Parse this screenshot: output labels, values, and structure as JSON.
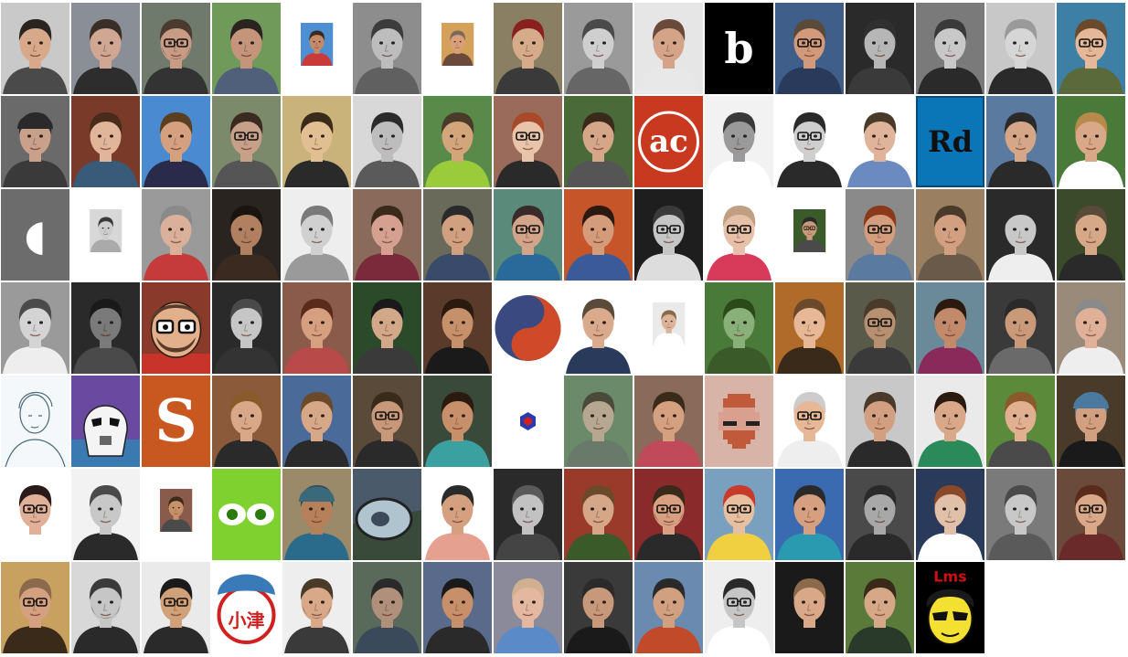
{
  "gallery": {
    "rows": [
      [
        {
          "kind": "face",
          "bg": "#c9c9c9",
          "skin": "#d7a98a",
          "hair": "#2a2420",
          "shirt": "#4a4a4a"
        },
        {
          "kind": "face",
          "bg": "#8a8f97",
          "skin": "#cfa793",
          "hair": "#3a2f28",
          "shirt": "#2d2d2d"
        },
        {
          "kind": "face",
          "bg": "#6f7a6c",
          "skin": "#c79b84",
          "hair": "#4a3a30",
          "shirt": "#333333",
          "glasses": true,
          "beard": true
        },
        {
          "kind": "face",
          "bg": "#6f9a5a",
          "skin": "#c4957a",
          "hair": "#2a2420",
          "shirt": "#50607a"
        },
        {
          "kind": "face",
          "bg": "#ffffff",
          "inner": "#4d8fd1",
          "skin": "#c38a6a",
          "hair": "#3a2a22",
          "shirt": "#c93a3a",
          "small": true
        },
        {
          "kind": "face",
          "bg": "#8d8d8d",
          "skin": "#bdbdbd",
          "hair": "#3c3c3c",
          "shirt": "#606060",
          "gray": true
        },
        {
          "kind": "face",
          "bg": "#ffffff",
          "inner": "#d5a15a",
          "skin": "#d9a07a",
          "hair": "#7a6a5a",
          "shirt": "#6a4a3a",
          "small": true
        },
        {
          "kind": "face",
          "bg": "#8a7f62",
          "skin": "#d6ab8a",
          "hair": "#8a2020",
          "shirt": "#3a3a3a"
        },
        {
          "kind": "face",
          "bg": "#9a9a9a",
          "skin": "#cfcfcf",
          "hair": "#4a4a4a",
          "shirt": "#666666",
          "gray": true
        },
        {
          "kind": "face",
          "bg": "#e6e6e6",
          "skin": "#d4a488",
          "hair": "#6a4a3a",
          "shirt": "#e8e8e8"
        },
        {
          "kind": "logo",
          "bg": "#000000",
          "fg": "#ffffff",
          "text": "b",
          "size": 46
        },
        {
          "kind": "face",
          "bg": "#3f5f8a",
          "skin": "#d29a7a",
          "hair": "#5a4a3a",
          "shirt": "#2a3a5a",
          "glasses": true
        },
        {
          "kind": "face",
          "bg": "#2a2a2a",
          "skin": "#b6b6b6",
          "hair": "#303030",
          "shirt": "#3a3a3a",
          "gray": true
        },
        {
          "kind": "face",
          "bg": "#7a7a7a",
          "skin": "#c8c8c8",
          "hair": "#3a3a3a",
          "shirt": "#2a2a2a",
          "gray": true
        },
        {
          "kind": "face",
          "bg": "#c8c8c8",
          "skin": "#d6d6d6",
          "hair": "#9a9a9a",
          "shirt": "#2a2a2a",
          "gray": true
        },
        {
          "kind": "face",
          "bg": "#3e7fa6",
          "skin": "#e6b89a",
          "hair": "#6a4a2a",
          "shirt": "#5a6a3a",
          "glasses": true
        }
      ],
      [
        {
          "kind": "face",
          "bg": "#6a6a6a",
          "skin": "#c9a08a",
          "hair": "#2a2a2a",
          "shirt": "#3a3a3a",
          "hat": "#2a2a2a"
        },
        {
          "kind": "face",
          "bg": "#7a3a2a",
          "skin": "#e0b59a",
          "hair": "#4a2a1a",
          "shirt": "#3a5a7a"
        },
        {
          "kind": "face",
          "bg": "#4a8ad0",
          "skin": "#d4a080",
          "hair": "#5a4020",
          "shirt": "#2a2a4a"
        },
        {
          "kind": "face",
          "bg": "#7a8a6a",
          "skin": "#c7a089",
          "hair": "#3a2a20",
          "shirt": "#555555",
          "glasses": true
        },
        {
          "kind": "face",
          "bg": "#c9b37a",
          "skin": "#e2bf92",
          "hair": "#3a2a1a",
          "shirt": "#2a2a2a"
        },
        {
          "kind": "face",
          "bg": "#d8d8d8",
          "skin": "#bdbdbd",
          "hair": "#2a2a2a",
          "shirt": "#5a5a5a",
          "gray": true
        },
        {
          "kind": "face",
          "bg": "#5a8a4a",
          "skin": "#d2a57a",
          "hair": "#4a3a2a",
          "shirt": "#9acb3a"
        },
        {
          "kind": "face",
          "bg": "#9a6a5a",
          "skin": "#e8c4aa",
          "hair": "#a84a2a",
          "shirt": "#2a2a2a",
          "glasses": true
        },
        {
          "kind": "face",
          "bg": "#4a6a3a",
          "skin": "#d6a688",
          "hair": "#3a2a1a",
          "shirt": "#555555"
        },
        {
          "kind": "logo",
          "bg": "#c8391f",
          "fg": "#ffffff",
          "text": "ac",
          "size": 34,
          "ring": true
        },
        {
          "kind": "face",
          "bg": "#f2f2f2",
          "skin": "#9a9a9a",
          "hair": "#3a3a3a",
          "shirt": "#ffffff",
          "gray": true
        },
        {
          "kind": "face",
          "bg": "#ffffff",
          "skin": "#cfcfcf",
          "hair": "#2a2a2a",
          "shirt": "#2a2a2a",
          "gray": true,
          "glasses": true
        },
        {
          "kind": "face",
          "bg": "#ffffff",
          "skin": "#e0b49a",
          "hair": "#4a3a2a",
          "shirt": "#6a8ac0"
        },
        {
          "kind": "logo",
          "bg": "#0a76b8",
          "fg": "#111111",
          "text": "Rd",
          "size": 32,
          "frame": true
        },
        {
          "kind": "face",
          "bg": "#5a7aa0",
          "skin": "#d6a688",
          "hair": "#2a2a2a",
          "shirt": "#2a2a2a"
        },
        {
          "kind": "face",
          "bg": "#4a7a3a",
          "skin": "#d8a888",
          "hair": "#b58a4a",
          "shirt": "#ffffff"
        }
      ],
      [
        {
          "kind": "logo",
          "bg": "#6c6c6c",
          "fg": "#ffffff",
          "text": "◖",
          "size": 46
        },
        {
          "kind": "face",
          "bg": "#ffffff",
          "inner": "#d8d8d8",
          "skin": "#cdcdcd",
          "hair": "#3a3a3a",
          "shirt": "#aaaaaa",
          "small": true,
          "gray": true
        },
        {
          "kind": "face",
          "bg": "#9a9a9a",
          "skin": "#dbb09a",
          "hair": "#8a8a8a",
          "shirt": "#c53a3a"
        },
        {
          "kind": "face",
          "bg": "#2a2420",
          "skin": "#b08060",
          "hair": "#1a1410",
          "shirt": "#3a2a20"
        },
        {
          "kind": "face",
          "bg": "#eeeeee",
          "skin": "#d0d0d0",
          "hair": "#7a7a7a",
          "shirt": "#9a9a9a",
          "gray": true
        },
        {
          "kind": "face",
          "bg": "#8a6a5a",
          "skin": "#d6a090",
          "hair": "#3a2a1a",
          "shirt": "#7a2a3a"
        },
        {
          "kind": "face",
          "bg": "#6a6a5a",
          "skin": "#d0a080",
          "hair": "#2a2a2a",
          "shirt": "#3a4a6a"
        },
        {
          "kind": "face",
          "bg": "#5a8a7a",
          "skin": "#d2a48a",
          "hair": "#3a2a2a",
          "shirt": "#2a6a9a",
          "glasses": true
        },
        {
          "kind": "face",
          "bg": "#c7552a",
          "skin": "#d49c7a",
          "hair": "#2a1a10",
          "shirt": "#3a5a9a"
        },
        {
          "kind": "face",
          "bg": "#1e1e1e",
          "skin": "#c6c6c6",
          "hair": "#3a3a3a",
          "shirt": "#dddddd",
          "gray": true,
          "glasses": true
        },
        {
          "kind": "face",
          "bg": "#ffffff",
          "skin": "#e6c0a8",
          "hair": "#c0a080",
          "shirt": "#d83a5a",
          "glasses": true
        },
        {
          "kind": "face",
          "bg": "#ffffff",
          "inner": "#3a5a2a",
          "skin": "#c99a7a",
          "hair": "#2a2a2a",
          "shirt": "#4a4a4a",
          "small": true,
          "glasses": true
        },
        {
          "kind": "face",
          "bg": "#8a8a8a",
          "skin": "#d49e7e",
          "hair": "#8a3a1a",
          "shirt": "#5a7aa0",
          "glasses": true
        },
        {
          "kind": "face",
          "bg": "#9a8060",
          "skin": "#d2a080",
          "hair": "#4a3a2a",
          "shirt": "#6a5a4a"
        },
        {
          "kind": "face",
          "bg": "#2a2a2a",
          "skin": "#c8c8c8",
          "hair": "#2a2a2a",
          "shirt": "#eeeeee",
          "gray": true
        },
        {
          "kind": "face",
          "bg": "#3a4a2a",
          "skin": "#d6a888",
          "hair": "#5a4a3a",
          "shirt": "#2a2a2a"
        }
      ],
      [
        {
          "kind": "face",
          "bg": "#9a9a9a",
          "skin": "#d4d4d4",
          "hair": "#4a4a4a",
          "shirt": "#eeeeee",
          "gray": true
        },
        {
          "kind": "face",
          "bg": "#2a2a2a",
          "skin": "#7a7a7a",
          "hair": "#1a1a1a",
          "shirt": "#4a4a4a",
          "gray": true
        },
        {
          "kind": "cartoon",
          "bg": "#8a3a2a",
          "skin": "#e2b08a",
          "hair": "#5a3a2a",
          "shirt": "#c8342a",
          "glasses": true
        },
        {
          "kind": "face",
          "bg": "#2a2a2a",
          "skin": "#c6c6c6",
          "hair": "#4a4a4a",
          "shirt": "#333333",
          "gray": true
        },
        {
          "kind": "face",
          "bg": "#8a5a4a",
          "skin": "#d6a080",
          "hair": "#5a2a1a",
          "shirt": "#b84a4a"
        },
        {
          "kind": "face",
          "bg": "#2a4a2a",
          "skin": "#d2a888",
          "hair": "#1a1a1a",
          "shirt": "#3a3a3a"
        },
        {
          "kind": "face",
          "bg": "#5a3a2a",
          "skin": "#c6906a",
          "hair": "#2a1a10",
          "shirt": "#1a1a1a"
        },
        {
          "kind": "logo",
          "bg": "#ffffff",
          "fg": "#d04a2a",
          "text": "◐",
          "size": 70,
          "swirl": true
        },
        {
          "kind": "face",
          "bg": "#ffffff",
          "skin": "#d9ab8c",
          "hair": "#5a4a3a",
          "shirt": "#2a3a5a"
        },
        {
          "kind": "face",
          "bg": "#ffffff",
          "inner": "#eaeaea",
          "skin": "#dcb49a",
          "hair": "#8a6a4a",
          "shirt": "#ffffff",
          "small": true
        },
        {
          "kind": "face",
          "bg": "#4a7a3a",
          "skin": "#8ab07a",
          "hair": "#2a4a1a",
          "shirt": "#3a5a2a"
        },
        {
          "kind": "face",
          "bg": "#b06a2a",
          "skin": "#e6b896",
          "hair": "#6a4a2a",
          "shirt": "#3a2a1a"
        },
        {
          "kind": "face",
          "bg": "#5a5a4a",
          "skin": "#b69070",
          "hair": "#4a3a2a",
          "shirt": "#3a3a3a",
          "glasses": true
        },
        {
          "kind": "face",
          "bg": "#6a8a9a",
          "skin": "#c28a6a",
          "hair": "#2a1a10",
          "shirt": "#8a2a5a"
        },
        {
          "kind": "face",
          "bg": "#3a3a3a",
          "skin": "#c89a7a",
          "hair": "#2a2a2a",
          "shirt": "#6a6a6a"
        },
        {
          "kind": "face",
          "bg": "#9a8a7a",
          "skin": "#e0b098",
          "hair": "#8a8a8a",
          "shirt": "#eeeeee"
        }
      ],
      [
        {
          "kind": "sketch",
          "bg": "#f4f8fa",
          "skin": "#ffffff",
          "hair": "#5a7a8a",
          "shirt": "#ffffff"
        },
        {
          "kind": "trooper",
          "bg": "#6a4aa0",
          "skin": "#f4f4f4",
          "hair": "#f4f4f4",
          "shirt": "#d0d0d0"
        },
        {
          "kind": "logo",
          "bg": "#c8581f",
          "fg": "#ffffff",
          "text": "S",
          "size": 64
        },
        {
          "kind": "face",
          "bg": "#8a5a3a",
          "skin": "#d8a888",
          "hair": "#8a5a2a",
          "shirt": "#2a2a2a"
        },
        {
          "kind": "face",
          "bg": "#4a6a9a",
          "skin": "#d6a888",
          "hair": "#6a4a2a",
          "shirt": "#2a2a2a"
        },
        {
          "kind": "face",
          "bg": "#5a4a3a",
          "skin": "#c8987a",
          "hair": "#3a2a1a",
          "shirt": "#2a2a2a",
          "glasses": true
        },
        {
          "kind": "face",
          "bg": "#3a4a3a",
          "skin": "#c8906a",
          "hair": "#2a1a10",
          "shirt": "#3aa0a0"
        },
        {
          "kind": "logo",
          "bg": "#ffffff",
          "fg": "#d02020",
          "text": "⬢",
          "size": 22,
          "hex": true
        },
        {
          "kind": "face",
          "bg": "#6a8a6a",
          "skin": "#b6a890",
          "hair": "#4a4a3a",
          "shirt": "#6a7a6a"
        },
        {
          "kind": "face",
          "bg": "#8a6a5a",
          "skin": "#d4a080",
          "hair": "#3a2a1a",
          "shirt": "#c04a5a"
        },
        {
          "kind": "pixel",
          "bg": "#d8b4a8",
          "skin": "#d9a090",
          "hair": "#c05a3a",
          "shirt": "#7a4a3a",
          "glasses": true
        },
        {
          "kind": "face",
          "bg": "#ffffff",
          "skin": "#e6b898",
          "hair": "#cccccc",
          "shirt": "#eeeeee",
          "glasses": true
        },
        {
          "kind": "face",
          "bg": "#c8c8c8",
          "skin": "#d2a080",
          "hair": "#4a3a2a",
          "shirt": "#2a2a2a"
        },
        {
          "kind": "face",
          "bg": "#eaeaea",
          "skin": "#d8a888",
          "hair": "#2a1a10",
          "shirt": "#2a8a5a"
        },
        {
          "kind": "face",
          "bg": "#5a8a3a",
          "skin": "#e0b090",
          "hair": "#8a5a2a",
          "shirt": "#4a4a4a"
        },
        {
          "kind": "face",
          "bg": "#4a3a2a",
          "skin": "#d2a080",
          "hair": "#4a7aa0",
          "shirt": "#1a1a1a",
          "hat": "#4a7aa0"
        }
      ],
      [
        {
          "kind": "face",
          "bg": "#ffffff",
          "skin": "#e0b098",
          "hair": "#2a1a1a",
          "shirt": "#ffffff",
          "glasses": true
        },
        {
          "kind": "face",
          "bg": "#f2f2f2",
          "skin": "#c8c8c8",
          "hair": "#4a4a4a",
          "shirt": "#2a2a2a",
          "gray": true
        },
        {
          "kind": "face",
          "bg": "#ffffff",
          "inner": "#8a5a4a",
          "skin": "#c6906a",
          "hair": "#3a2a1a",
          "shirt": "#4a4a4a",
          "small": true
        },
        {
          "kind": "logo",
          "bg": "#7fd130",
          "fg": "#ffffff",
          "text": "◉ ◉",
          "size": 28,
          "eyes": true
        },
        {
          "kind": "face",
          "bg": "#9a8a6a",
          "skin": "#b6805a",
          "hair": "#2a4a5a",
          "shirt": "#2a6a8a",
          "hat": "#3a6a7a"
        },
        {
          "kind": "car",
          "bg": "#6a7a6a",
          "skin": "#b0c4d0",
          "hair": "#3a3a3a",
          "shirt": "#5a6a5a"
        },
        {
          "kind": "face",
          "bg": "#ffffff",
          "skin": "#d4a080",
          "hair": "#2a2a2a",
          "shirt": "#e6a090",
          "small": false
        },
        {
          "kind": "face",
          "bg": "#2a2a2a",
          "skin": "#c2c2c2",
          "hair": "#5a5a5a",
          "shirt": "#444444",
          "gray": true
        },
        {
          "kind": "face",
          "bg": "#9a3a2a",
          "skin": "#d6a688",
          "hair": "#6a4a2a",
          "shirt": "#3a5a2a"
        },
        {
          "kind": "face",
          "bg": "#8a2a2a",
          "skin": "#d8a080",
          "hair": "#3a2a1a",
          "shirt": "#2a2a2a",
          "glasses": true,
          "beard": true
        },
        {
          "kind": "face",
          "bg": "#7aa0c0",
          "skin": "#e6c0a0",
          "hair": "#c83a2a",
          "shirt": "#f0d040",
          "glasses": true
        },
        {
          "kind": "face",
          "bg": "#3a6ab0",
          "skin": "#d6a080",
          "hair": "#2a2a2a",
          "shirt": "#2a9ab0"
        },
        {
          "kind": "face",
          "bg": "#4a4a4a",
          "skin": "#a8a8a8",
          "hair": "#2a2a2a",
          "shirt": "#2a2a2a",
          "gray": true
        },
        {
          "kind": "face",
          "bg": "#2a3a5a",
          "skin": "#e0c0a8",
          "hair": "#8a4a2a",
          "shirt": "#ffffff",
          "small": false
        },
        {
          "kind": "face",
          "bg": "#7a7a7a",
          "skin": "#c8c8c8",
          "hair": "#4a4a4a",
          "shirt": "#5a5a5a",
          "gray": true
        },
        {
          "kind": "face",
          "bg": "#6a4a3a",
          "skin": "#d8a888",
          "hair": "#5a2a1a",
          "shirt": "#6a2a2a",
          "glasses": true
        }
      ],
      [
        {
          "kind": "face",
          "bg": "#c8a060",
          "skin": "#d4a080",
          "hair": "#8a6a4a",
          "shirt": "#3a2a1a",
          "glasses": true
        },
        {
          "kind": "face",
          "bg": "#d8d8d8",
          "skin": "#c6c6c6",
          "hair": "#3a3a3a",
          "shirt": "#2a2a2a",
          "gray": true,
          "beard": true
        },
        {
          "kind": "face",
          "bg": "#eaeaea",
          "skin": "#d0a078",
          "hair": "#1a1a1a",
          "shirt": "#2a2a2a",
          "glasses": true
        },
        {
          "kind": "stamp",
          "bg": "#ffffff",
          "skin": "#ffffff",
          "hair": "#3a7ab8",
          "shirt": "#d02020",
          "stamp_text": "小津"
        },
        {
          "kind": "face",
          "bg": "#eeeeee",
          "skin": "#d8a888",
          "hair": "#4a3a2a",
          "shirt": "#3a3a3a",
          "beard": true
        },
        {
          "kind": "face",
          "bg": "#5a6a5a",
          "skin": "#b0907a",
          "hair": "#2a2a2a",
          "shirt": "#3a4a5a"
        },
        {
          "kind": "face",
          "bg": "#5a6a8a",
          "skin": "#c8906a",
          "hair": "#1a1a1a",
          "shirt": "#2a2a2a"
        },
        {
          "kind": "face",
          "bg": "#8a8a9a",
          "skin": "#e4b8a0",
          "hair": "#d0b090",
          "shirt": "#5a8ac8"
        },
        {
          "kind": "face",
          "bg": "#3a3a3a",
          "skin": "#c8987a",
          "hair": "#2a2a2a",
          "shirt": "#1a1a1a"
        },
        {
          "kind": "face",
          "bg": "#6a8ab0",
          "skin": "#d0a080",
          "hair": "#2a2a2a",
          "shirt": "#c04a2a"
        },
        {
          "kind": "face",
          "bg": "#eeeeee",
          "skin": "#c6c6c6",
          "hair": "#2a2a2a",
          "shirt": "#ffffff",
          "gray": true,
          "glasses": true
        },
        {
          "kind": "face",
          "bg": "#1a1a1a",
          "skin": "#d8a888",
          "hair": "#8a6a4a",
          "shirt": "#1a1a1a"
        },
        {
          "kind": "face",
          "bg": "#5a7a3a",
          "skin": "#d6a888",
          "hair": "#3a2a1a",
          "shirt": "#2a3a2a"
        },
        {
          "kind": "comic",
          "bg": "#000000",
          "skin": "#f4e030",
          "hair": "#1a1a1a",
          "shirt": "#1a1a1a",
          "glasses": true,
          "caption": "Lms"
        }
      ]
    ]
  }
}
